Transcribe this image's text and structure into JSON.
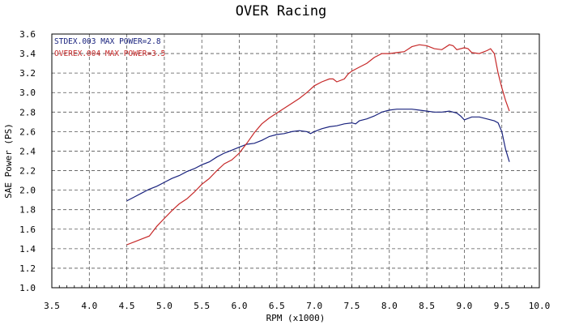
{
  "chart_data": {
    "type": "line",
    "title": "OVER Racing",
    "xlabel": "RPM (x1000)",
    "ylabel": "SAE Power (PS)",
    "xlim": [
      3.5,
      10.0
    ],
    "ylim": [
      1.0,
      3.6
    ],
    "x_ticks": [
      "3.5",
      "4.0",
      "4.5",
      "5.0",
      "5.5",
      "6.0",
      "6.5",
      "7.0",
      "7.5",
      "8.0",
      "8.5",
      "9.0",
      "9.5",
      "10.0"
    ],
    "y_ticks": [
      "1.0",
      "1.2",
      "1.4",
      "1.6",
      "1.8",
      "2.0",
      "2.2",
      "2.4",
      "2.6",
      "2.8",
      "3.0",
      "3.2",
      "3.4",
      "3.6"
    ],
    "grid": true,
    "legend_position": "top-left",
    "series": [
      {
        "name": "STDEX.003  MAX POWER=2.8",
        "color": "#1a237e",
        "points": [
          [
            4.5,
            1.89
          ],
          [
            4.6,
            1.93
          ],
          [
            4.7,
            1.97
          ],
          [
            4.8,
            2.01
          ],
          [
            4.9,
            2.04
          ],
          [
            5.0,
            2.08
          ],
          [
            5.1,
            2.12
          ],
          [
            5.2,
            2.15
          ],
          [
            5.3,
            2.19
          ],
          [
            5.4,
            2.22
          ],
          [
            5.5,
            2.26
          ],
          [
            5.6,
            2.29
          ],
          [
            5.7,
            2.34
          ],
          [
            5.8,
            2.38
          ],
          [
            5.9,
            2.41
          ],
          [
            6.0,
            2.44
          ],
          [
            6.1,
            2.47
          ],
          [
            6.2,
            2.48
          ],
          [
            6.3,
            2.51
          ],
          [
            6.4,
            2.55
          ],
          [
            6.5,
            2.57
          ],
          [
            6.6,
            2.58
          ],
          [
            6.7,
            2.6
          ],
          [
            6.8,
            2.61
          ],
          [
            6.9,
            2.6
          ],
          [
            6.95,
            2.58
          ],
          [
            7.0,
            2.6
          ],
          [
            7.1,
            2.63
          ],
          [
            7.2,
            2.65
          ],
          [
            7.3,
            2.66
          ],
          [
            7.4,
            2.68
          ],
          [
            7.5,
            2.69
          ],
          [
            7.55,
            2.68
          ],
          [
            7.6,
            2.71
          ],
          [
            7.7,
            2.73
          ],
          [
            7.8,
            2.76
          ],
          [
            7.9,
            2.8
          ],
          [
            8.0,
            2.82
          ],
          [
            8.1,
            2.83
          ],
          [
            8.2,
            2.83
          ],
          [
            8.3,
            2.83
          ],
          [
            8.4,
            2.82
          ],
          [
            8.5,
            2.81
          ],
          [
            8.6,
            2.8
          ],
          [
            8.7,
            2.8
          ],
          [
            8.8,
            2.81
          ],
          [
            8.9,
            2.79
          ],
          [
            8.95,
            2.76
          ],
          [
            9.0,
            2.72
          ],
          [
            9.1,
            2.75
          ],
          [
            9.2,
            2.75
          ],
          [
            9.3,
            2.73
          ],
          [
            9.4,
            2.71
          ],
          [
            9.45,
            2.69
          ],
          [
            9.5,
            2.6
          ],
          [
            9.55,
            2.42
          ],
          [
            9.6,
            2.29
          ]
        ]
      },
      {
        "name": "OVEREX.004  MAX POWER=3.5",
        "color": "#c62828",
        "points": [
          [
            4.5,
            1.44
          ],
          [
            4.6,
            1.47
          ],
          [
            4.7,
            1.5
          ],
          [
            4.8,
            1.53
          ],
          [
            4.85,
            1.58
          ],
          [
            4.9,
            1.63
          ],
          [
            5.0,
            1.71
          ],
          [
            5.1,
            1.79
          ],
          [
            5.2,
            1.86
          ],
          [
            5.3,
            1.91
          ],
          [
            5.4,
            1.98
          ],
          [
            5.5,
            2.06
          ],
          [
            5.6,
            2.12
          ],
          [
            5.7,
            2.2
          ],
          [
            5.8,
            2.27
          ],
          [
            5.9,
            2.31
          ],
          [
            6.0,
            2.38
          ],
          [
            6.1,
            2.48
          ],
          [
            6.2,
            2.59
          ],
          [
            6.3,
            2.68
          ],
          [
            6.4,
            2.74
          ],
          [
            6.5,
            2.79
          ],
          [
            6.6,
            2.84
          ],
          [
            6.7,
            2.89
          ],
          [
            6.8,
            2.94
          ],
          [
            6.9,
            3.0
          ],
          [
            7.0,
            3.07
          ],
          [
            7.1,
            3.11
          ],
          [
            7.2,
            3.14
          ],
          [
            7.25,
            3.14
          ],
          [
            7.3,
            3.11
          ],
          [
            7.4,
            3.14
          ],
          [
            7.45,
            3.19
          ],
          [
            7.5,
            3.22
          ],
          [
            7.6,
            3.26
          ],
          [
            7.7,
            3.3
          ],
          [
            7.8,
            3.36
          ],
          [
            7.9,
            3.4
          ],
          [
            8.0,
            3.4
          ],
          [
            8.1,
            3.41
          ],
          [
            8.2,
            3.42
          ],
          [
            8.3,
            3.47
          ],
          [
            8.4,
            3.49
          ],
          [
            8.5,
            3.48
          ],
          [
            8.6,
            3.45
          ],
          [
            8.7,
            3.44
          ],
          [
            8.8,
            3.49
          ],
          [
            8.85,
            3.48
          ],
          [
            8.9,
            3.44
          ],
          [
            9.0,
            3.46
          ],
          [
            9.05,
            3.45
          ],
          [
            9.1,
            3.41
          ],
          [
            9.2,
            3.4
          ],
          [
            9.3,
            3.43
          ],
          [
            9.35,
            3.45
          ],
          [
            9.4,
            3.4
          ],
          [
            9.45,
            3.2
          ],
          [
            9.5,
            3.05
          ],
          [
            9.55,
            2.92
          ],
          [
            9.6,
            2.81
          ]
        ]
      }
    ]
  }
}
